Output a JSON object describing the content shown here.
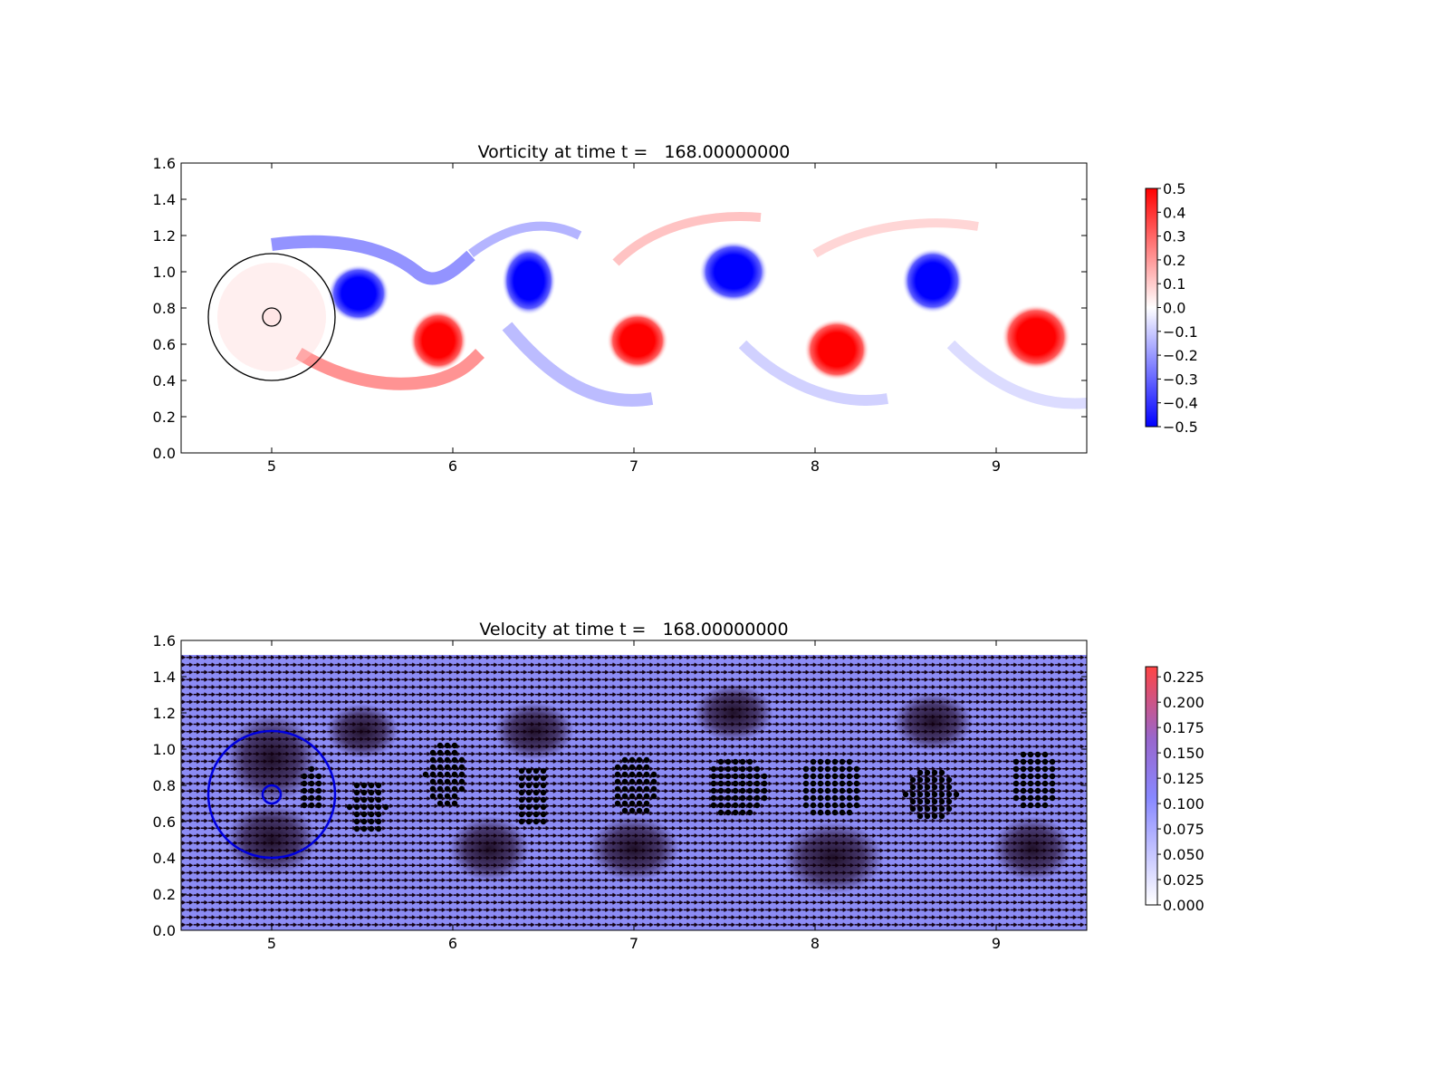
{
  "chart_data": [
    {
      "type": "heatmap",
      "title": "Vorticity at time t =   168.00000000",
      "xlabel": "",
      "ylabel": "",
      "xlim": [
        4.5,
        9.5
      ],
      "ylim": [
        0.0,
        1.6
      ],
      "xticks": [
        "5",
        "6",
        "7",
        "8",
        "9"
      ],
      "yticks": [
        "0.0",
        "0.2",
        "0.4",
        "0.6",
        "0.8",
        "1.0",
        "1.2",
        "1.4",
        "1.6"
      ],
      "colormap": {
        "low": "#0000ff",
        "mid": "#ffffff",
        "high": "#ff0000"
      },
      "color_range": [
        -0.5,
        0.5
      ],
      "colorbar_ticks": [
        "0.5",
        "0.4",
        "0.3",
        "0.2",
        "0.1",
        "0.0",
        "−0.1",
        "−0.2",
        "−0.3",
        "−0.4",
        "−0.5"
      ],
      "cylinder": {
        "center": [
          5.0,
          0.75
        ],
        "radius": 0.05
      },
      "outer_circle": {
        "center": [
          5.0,
          0.75
        ],
        "radius": 0.35
      },
      "vortices": [
        {
          "x": 5.48,
          "y": 0.88,
          "sign": -1,
          "rx": 0.17,
          "ry": 0.16
        },
        {
          "x": 5.92,
          "y": 0.62,
          "sign": 1,
          "rx": 0.16,
          "ry": 0.17
        },
        {
          "x": 6.42,
          "y": 0.95,
          "sign": -1,
          "rx": 0.15,
          "ry": 0.19
        },
        {
          "x": 7.02,
          "y": 0.62,
          "sign": 1,
          "rx": 0.17,
          "ry": 0.16
        },
        {
          "x": 7.55,
          "y": 1.0,
          "sign": -1,
          "rx": 0.19,
          "ry": 0.17
        },
        {
          "x": 8.12,
          "y": 0.57,
          "sign": 1,
          "rx": 0.18,
          "ry": 0.17
        },
        {
          "x": 8.65,
          "y": 0.95,
          "sign": -1,
          "rx": 0.17,
          "ry": 0.18
        },
        {
          "x": 9.22,
          "y": 0.64,
          "sign": 1,
          "rx": 0.19,
          "ry": 0.18
        }
      ]
    },
    {
      "type": "heatmap",
      "title": "Velocity at time t =   168.00000000",
      "xlabel": "",
      "ylabel": "",
      "xlim": [
        4.5,
        9.5
      ],
      "ylim": [
        0.0,
        1.6
      ],
      "xticks": [
        "5",
        "6",
        "7",
        "8",
        "9"
      ],
      "yticks": [
        "0.0",
        "0.2",
        "0.4",
        "0.6",
        "0.8",
        "1.0",
        "1.2",
        "1.4",
        "1.6"
      ],
      "colormap": {
        "low": "#ffffff",
        "mid": "#8888ff",
        "high": "#ff4444"
      },
      "color_range": [
        0.0,
        0.235
      ],
      "colorbar_ticks": [
        "0.225",
        "0.200",
        "0.175",
        "0.150",
        "0.125",
        "0.100",
        "0.075",
        "0.050",
        "0.025",
        "0.000"
      ],
      "field_extent_y": [
        0.0,
        1.52
      ],
      "quiver": true,
      "cylinder": {
        "center": [
          5.0,
          0.75
        ],
        "radius": 0.05
      },
      "outer_circle": {
        "center": [
          5.0,
          0.75
        ],
        "radius": 0.35
      },
      "particle_clusters": [
        {
          "x": 5.22,
          "y": 0.78,
          "rx": 0.08,
          "ry": 0.11
        },
        {
          "x": 5.53,
          "y": 0.68,
          "rx": 0.1,
          "ry": 0.16
        },
        {
          "x": 5.96,
          "y": 0.86,
          "rx": 0.11,
          "ry": 0.2
        },
        {
          "x": 6.44,
          "y": 0.74,
          "rx": 0.1,
          "ry": 0.18
        },
        {
          "x": 7.0,
          "y": 0.8,
          "rx": 0.13,
          "ry": 0.18
        },
        {
          "x": 7.57,
          "y": 0.79,
          "rx": 0.17,
          "ry": 0.18
        },
        {
          "x": 8.09,
          "y": 0.79,
          "rx": 0.18,
          "ry": 0.18
        },
        {
          "x": 8.64,
          "y": 0.75,
          "rx": 0.14,
          "ry": 0.16
        },
        {
          "x": 9.21,
          "y": 0.84,
          "rx": 0.14,
          "ry": 0.17
        }
      ]
    }
  ]
}
